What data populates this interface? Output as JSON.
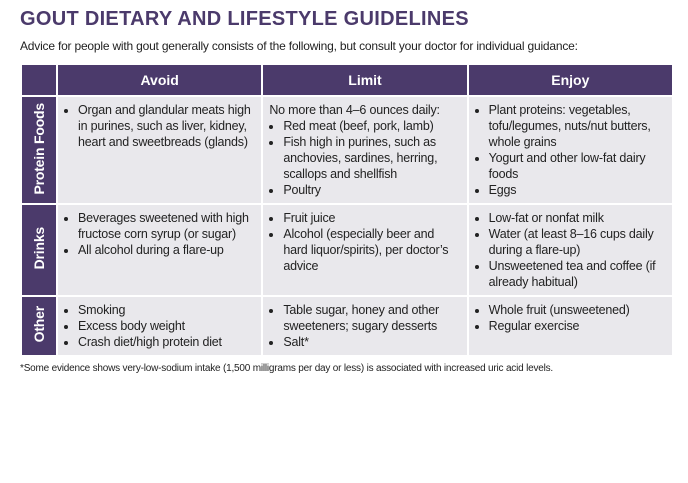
{
  "title": "GOUT DIETARY AND LIFESTYLE GUIDELINES",
  "subtitle": "Advice for people with gout generally consists of the following, but consult your doctor for individual guidance:",
  "table": {
    "columns": [
      "Avoid",
      "Limit",
      "Enjoy"
    ],
    "rows": [
      {
        "label": "Protein Foods",
        "cells": [
          {
            "items": [
              "Organ and glandular meats high in purines, such as liver, kidney, heart and sweetbreads (glands)"
            ]
          },
          {
            "intro": "No more than 4–6 ounces daily:",
            "items": [
              "Red meat (beef, pork, lamb)",
              "Fish high in purines, such as anchovies, sardines, herring, scallops and shellfish",
              "Poultry"
            ]
          },
          {
            "items": [
              "Plant proteins: vegetables, tofu/legumes, nuts/nut butters, whole grains",
              "Yogurt and other low-fat dairy foods",
              "Eggs"
            ]
          }
        ]
      },
      {
        "label": "Drinks",
        "cells": [
          {
            "items": [
              "Beverages sweetened with high fructose corn syrup (or sugar)",
              "All alcohol during a flare-up"
            ]
          },
          {
            "items": [
              "Fruit juice",
              "Alcohol (especially beer and hard liquor/spirits), per doctor’s advice"
            ]
          },
          {
            "items": [
              "Low-fat or nonfat milk",
              "Water (at least 8–16 cups daily during a flare-up)",
              "Unsweetened tea and coffee (if already habitual)"
            ]
          }
        ]
      },
      {
        "label": "Other",
        "cells": [
          {
            "items": [
              "Smoking",
              "Excess body weight",
              "Crash diet/high protein diet"
            ]
          },
          {
            "items": [
              "Table sugar, honey and other sweeteners; sugary desserts",
              "Salt*"
            ]
          },
          {
            "items": [
              "Whole fruit (unsweetened)",
              "Regular exercise"
            ]
          }
        ]
      }
    ]
  },
  "footnote": "*Some evidence shows very-low-sodium intake (1,500 milligrams per day or less) is associated with increased uric acid levels."
}
